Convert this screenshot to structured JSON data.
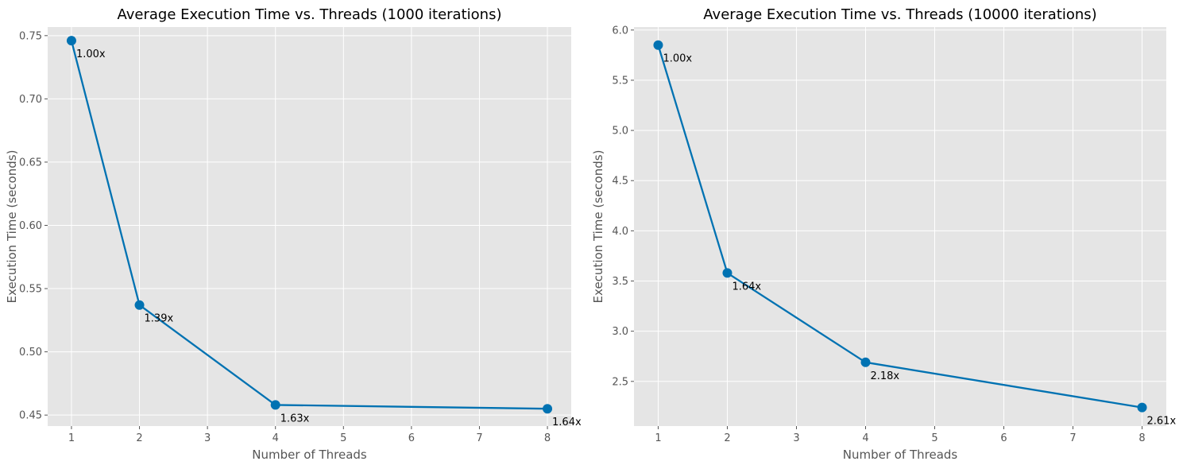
{
  "chart_data": [
    {
      "type": "line",
      "title": "Average Execution Time vs. Threads (1000 iterations)",
      "xlabel": "Number of Threads",
      "ylabel": "Execution Time (seconds)",
      "xlim": [
        0.65,
        8.35
      ],
      "ylim": [
        0.4413,
        0.7568
      ],
      "xticks": [
        1,
        2,
        3,
        4,
        5,
        6,
        7,
        8
      ],
      "yticks": [
        0.45,
        0.5,
        0.55,
        0.6,
        0.65,
        0.7,
        0.75
      ],
      "ytick_labels": [
        "0.45",
        "0.50",
        "0.55",
        "0.60",
        "0.65",
        "0.70",
        "0.75"
      ],
      "grid": true,
      "series": [
        {
          "color": "#0072b2",
          "x": [
            1,
            2,
            4,
            8
          ],
          "y": [
            0.746,
            0.537,
            0.458,
            0.455
          ],
          "labels": [
            "1.00x",
            "1.39x",
            "1.63x",
            "1.64x"
          ]
        }
      ]
    },
    {
      "type": "line",
      "title": "Average Execution Time vs. Threads (10000 iterations)",
      "xlabel": "Number of Threads",
      "ylabel": "Execution Time (seconds)",
      "xlim": [
        0.65,
        8.35
      ],
      "ylim": [
        2.055,
        6.03
      ],
      "xticks": [
        1,
        2,
        3,
        4,
        5,
        6,
        7,
        8
      ],
      "yticks": [
        2.5,
        3.0,
        3.5,
        4.0,
        4.5,
        5.0,
        5.5,
        6.0
      ],
      "ytick_labels": [
        "2.5",
        "3.0",
        "3.5",
        "4.0",
        "4.5",
        "5.0",
        "5.5",
        "6.0"
      ],
      "grid": true,
      "series": [
        {
          "color": "#0072b2",
          "x": [
            1,
            2,
            4,
            8
          ],
          "y": [
            5.85,
            3.58,
            2.69,
            2.24
          ],
          "labels": [
            "1.00x",
            "1.64x",
            "2.18x",
            "2.61x"
          ]
        }
      ]
    }
  ]
}
